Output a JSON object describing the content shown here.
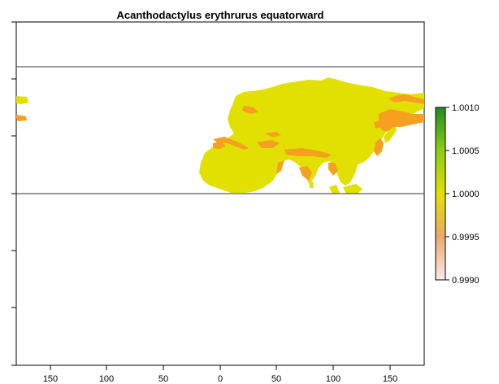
{
  "title": "Acanthodactylus erythrurus equatorward",
  "map": {
    "type": "raster",
    "x_ticks": [
      "150",
      "100",
      "50",
      "0",
      "50",
      "100",
      "150"
    ],
    "x_tick_values": [
      -150,
      -100,
      -50,
      0,
      50,
      100,
      150
    ],
    "x_range": [
      -180,
      180
    ],
    "y_range": [
      -90,
      90
    ],
    "reference_lines_lat": [
      0,
      55
    ],
    "land_color": "#e2e000",
    "highlight_color": "#f5a020",
    "background": "#ffffff"
  },
  "legend": {
    "labels": [
      "1.0010",
      "1.0005",
      "1.0000",
      "0.9995",
      "0.9990"
    ],
    "values": [
      1.001,
      1.0005,
      1.0,
      0.9995,
      0.999
    ],
    "colors": [
      "#1e8c1e",
      "#8ccc14",
      "#e2e000",
      "#eba86c",
      "#f8eaea"
    ]
  }
}
